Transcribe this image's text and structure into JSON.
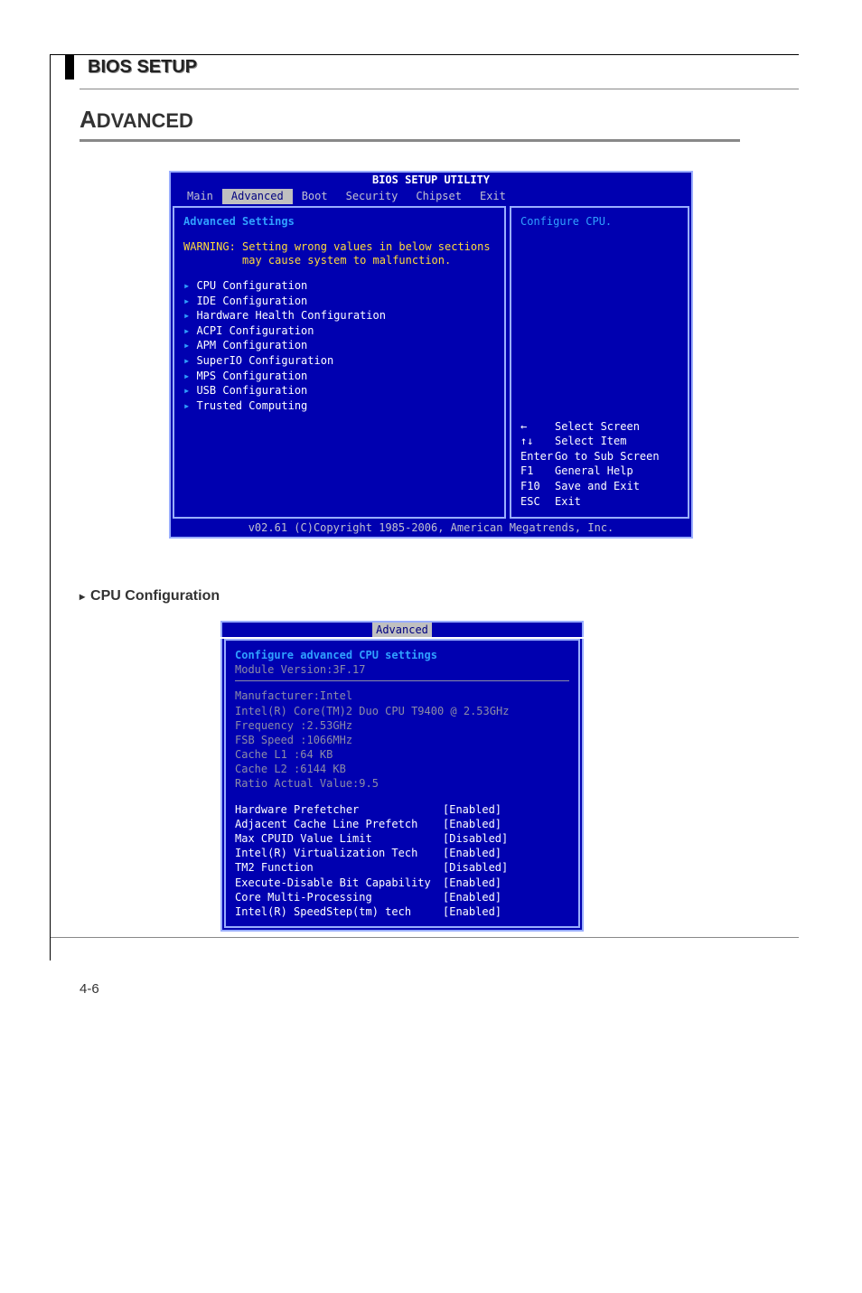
{
  "page": {
    "header_title": "BIOS SETUP",
    "section_title_first": "A",
    "section_title_rest": "DVANCED",
    "page_number": "4-6"
  },
  "bios": {
    "title": "BIOS SETUP UTILITY",
    "tabs": [
      "Main",
      "Advanced",
      "Boot",
      "Security",
      "Chipset",
      "Exit"
    ],
    "selected_tab_index": 1,
    "left": {
      "heading": "Advanced Settings",
      "warning_label": "WARNING:",
      "warning_l1": "Setting wrong values in below sections",
      "warning_l2": "may cause system to malfunction.",
      "items": [
        "CPU Configuration",
        "IDE Configuration",
        "Hardware Health Configuration",
        "ACPI Configuration",
        "APM Configuration",
        "SuperIO Configuration",
        "MPS Configuration",
        "USB Configuration",
        "Trusted Computing"
      ]
    },
    "right": {
      "help_text": "Configure CPU.",
      "nav": [
        {
          "key": "←",
          "desc": "Select Screen"
        },
        {
          "key": "↑↓",
          "desc": "Select Item"
        },
        {
          "key": "Enter",
          "desc": "Go to Sub Screen"
        },
        {
          "key": "F1",
          "desc": "General Help"
        },
        {
          "key": "F10",
          "desc": "Save and Exit"
        },
        {
          "key": "ESC",
          "desc": "Exit"
        }
      ]
    },
    "footer": "v02.61 (C)Copyright 1985-2006, American Megatrends, Inc."
  },
  "cpu_section": {
    "label_tri": "▸",
    "label": "CPU Configuration",
    "tab": "Advanced",
    "heading": "Configure advanced CPU settings",
    "module_version": "Module Version:3F.17",
    "info": {
      "manufacturer": "Manufacturer:Intel",
      "model": "Intel(R) Core(TM)2 Duo CPU     T9400  @ 2.53GHz",
      "frequency": "Frequency    :2.53GHz",
      "fsb": "FSB Speed    :1066MHz",
      "l1": "Cache L1     :64 KB",
      "l2": "Cache L2     :6144 KB",
      "ratio": "Ratio Actual Value:9.5"
    },
    "settings": [
      {
        "label": "Hardware Prefetcher",
        "value": "[Enabled]"
      },
      {
        "label": "Adjacent Cache Line Prefetch",
        "value": "[Enabled]"
      },
      {
        "label": "Max CPUID Value Limit",
        "value": "[Disabled]"
      },
      {
        "label": "Intel(R) Virtualization Tech",
        "value": "[Enabled]"
      },
      {
        "label": "TM2 Function",
        "value": "[Disabled]"
      },
      {
        "label": "Execute-Disable Bit Capability",
        "value": "[Enabled]"
      },
      {
        "label": "Core Multi-Processing",
        "value": "[Enabled]"
      },
      {
        "label": "Intel(R) SpeedStep(tm) tech",
        "value": "[Enabled]"
      }
    ]
  }
}
